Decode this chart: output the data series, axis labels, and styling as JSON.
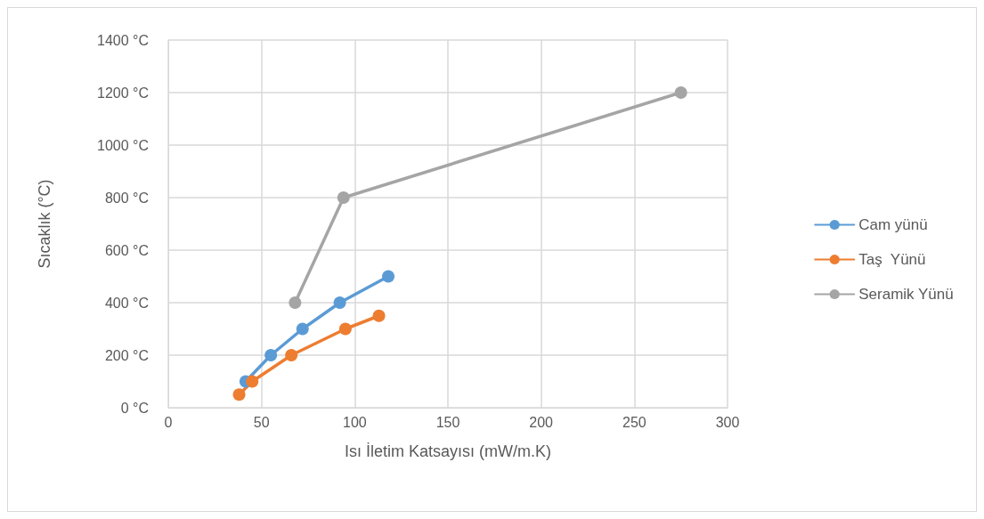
{
  "chart_data": {
    "type": "line",
    "xlabel": "Isı İletim Katsayısı (mW/m.K)",
    "ylabel": "Sıcaklık (°C)",
    "xlim": [
      0,
      300
    ],
    "xticks": [
      0,
      50,
      100,
      150,
      200,
      250,
      300
    ],
    "ylim": [
      0,
      1400
    ],
    "yticks": [
      {
        "value": 0,
        "label": "0 °C"
      },
      {
        "value": 200,
        "label": "200 °C"
      },
      {
        "value": 400,
        "label": "400 °C"
      },
      {
        "value": 600,
        "label": "600 °C"
      },
      {
        "value": 800,
        "label": "800 °C"
      },
      {
        "value": 1000,
        "label": "1000 °C"
      },
      {
        "value": 1200,
        "label": "1200 °C"
      },
      {
        "value": 1400,
        "label": "1400 °C"
      }
    ],
    "grid": true,
    "legend": "right",
    "marker": "circle",
    "line_style": "solid",
    "series": [
      {
        "name": "Cam yünü",
        "color": "#5b9bd5",
        "x": [
          41.5,
          55,
          72,
          92,
          118
        ],
        "values": [
          100,
          200,
          300,
          400,
          500
        ]
      },
      {
        "name": "Taş  Yünü",
        "color": "#ed7d31",
        "x": [
          38,
          45,
          66,
          95,
          113
        ],
        "values": [
          50,
          100,
          200,
          300,
          350
        ]
      },
      {
        "name": "Seramik Yünü",
        "color": "#a5a5a5",
        "x": [
          68,
          94,
          275
        ],
        "values": [
          400,
          800,
          1200
        ]
      }
    ]
  }
}
